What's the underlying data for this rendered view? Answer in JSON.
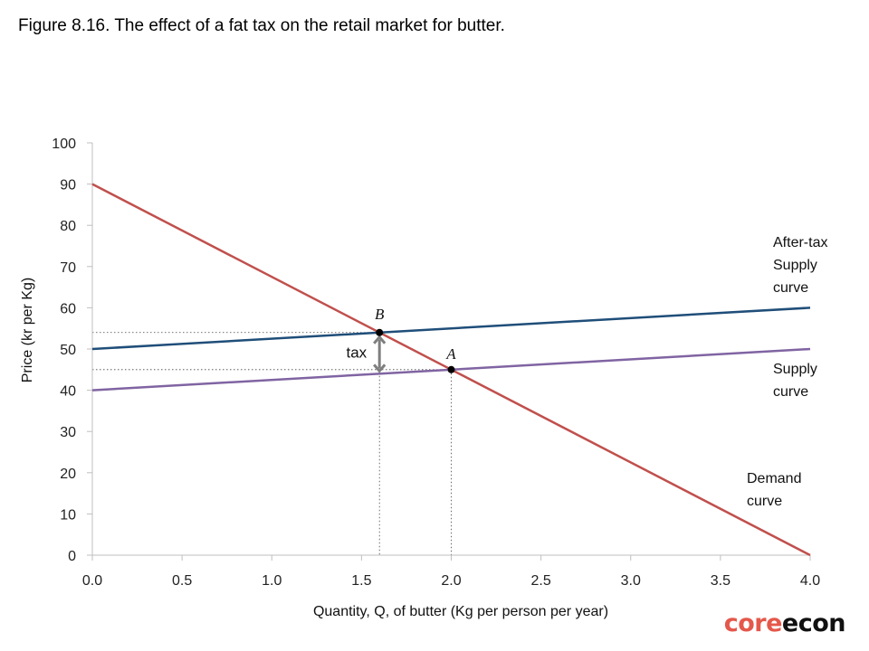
{
  "figure_title": "Figure 8.16. The effect of a fat tax on the retail market for butter.",
  "brand": {
    "part1": "core",
    "part2": "econ",
    "color1": "#e4584b",
    "color2": "#111111"
  },
  "chart_data": {
    "type": "line",
    "title": "",
    "xlabel": "Quantity, Q, of butter (Kg per person per year)",
    "ylabel": "Price (kr per Kg)",
    "xlim": [
      0,
      4
    ],
    "ylim": [
      0,
      100
    ],
    "x_ticks": [
      "0.0",
      "0.5",
      "1.0",
      "1.5",
      "2.0",
      "2.5",
      "3.0",
      "3.5",
      "4.0"
    ],
    "x_tick_values": [
      0,
      0.5,
      1,
      1.5,
      2,
      2.5,
      3,
      3.5,
      4
    ],
    "y_ticks": [
      "0",
      "10",
      "20",
      "30",
      "40",
      "50",
      "60",
      "70",
      "80",
      "90",
      "100"
    ],
    "y_tick_values": [
      0,
      10,
      20,
      30,
      40,
      50,
      60,
      70,
      80,
      90,
      100
    ],
    "grid": false,
    "series": [
      {
        "name": "Demand curve",
        "label_lines": [
          "Demand",
          "curve"
        ],
        "color": "#c0504d",
        "x": [
          0,
          4
        ],
        "y": [
          90,
          0
        ]
      },
      {
        "name": "After-tax Supply curve",
        "label_lines": [
          "After-tax",
          "Supply",
          "curve"
        ],
        "color": "#1f4e79",
        "x": [
          0,
          4
        ],
        "y": [
          50,
          60
        ]
      },
      {
        "name": "Supply curve",
        "label_lines": [
          "Supply",
          "curve"
        ],
        "color": "#8064a2",
        "x": [
          0,
          4
        ],
        "y": [
          40,
          50
        ]
      }
    ],
    "points": [
      {
        "label": "B",
        "x": 1.6,
        "y": 54
      },
      {
        "label": "A",
        "x": 2.0,
        "y": 45
      }
    ],
    "annotations": [
      {
        "type": "tax-arrow",
        "label": "tax",
        "x": 1.6,
        "y_from": 44,
        "y_to": 54,
        "color": "#7f7f7f"
      }
    ]
  }
}
